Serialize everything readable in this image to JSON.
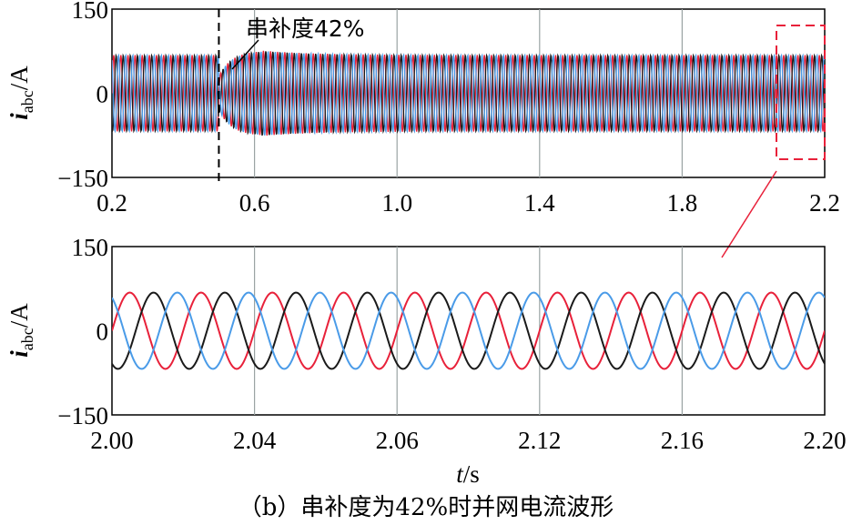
{
  "caption": "（b）串补度为42%时并网电流波形",
  "chart_data": [
    {
      "type": "line",
      "ylabel_main": "i",
      "ylabel_sub": "abc",
      "ylabel_unit": "/A",
      "xlabel": "",
      "xlim": [
        0.2,
        2.2
      ],
      "ylim": [
        -150,
        150
      ],
      "x_ticks": [
        "0.2",
        "0.6",
        "1.0",
        "1.4",
        "1.8",
        "2.2"
      ],
      "y_ticks": [
        "150",
        "0",
        "−150"
      ],
      "grid_x": true,
      "grid_y": false,
      "event_time": 0.5,
      "annotation": "串补度42%",
      "zoom_window": [
        2.0,
        2.2
      ],
      "frequency_hz": 50,
      "series": [
        {
          "color": "#e8213a",
          "amplitude_before": 68,
          "amplitude_after_min": 30,
          "amplitude_after_peak": 76,
          "amplitude_steady": 68,
          "phase_deg": 0
        },
        {
          "color": "#1a1a1a",
          "amplitude_before": 68,
          "amplitude_after_min": 30,
          "amplitude_after_peak": 76,
          "amplitude_steady": 68,
          "phase_deg": -120
        },
        {
          "color": "#4a9be8",
          "amplitude_before": 68,
          "amplitude_after_min": 30,
          "amplitude_after_peak": 76,
          "amplitude_steady": 68,
          "phase_deg": 120
        }
      ]
    },
    {
      "type": "line",
      "ylabel_main": "i",
      "ylabel_sub": "abc",
      "ylabel_unit": "/A",
      "xlabel_main": "t",
      "xlabel_unit": "/s",
      "xlim": [
        2.0,
        2.2
      ],
      "ylim": [
        -150,
        150
      ],
      "x_ticks": [
        "2.00",
        "2.04",
        "2.06",
        "2.12",
        "2.16",
        "2.20"
      ],
      "y_ticks": [
        "150",
        "0",
        "−150"
      ],
      "grid_x": true,
      "grid_y": false,
      "frequency_hz": 50,
      "series": [
        {
          "color": "#e8213a",
          "amplitude": 68,
          "phase_deg": 0
        },
        {
          "color": "#1a1a1a",
          "amplitude": 68,
          "phase_deg": -120
        },
        {
          "color": "#4a9be8",
          "amplitude": 68,
          "phase_deg": 120
        }
      ]
    }
  ]
}
